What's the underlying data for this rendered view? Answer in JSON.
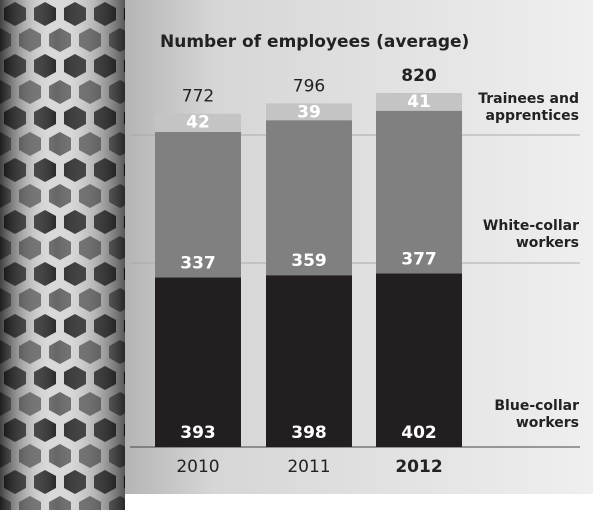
{
  "chart_data": {
    "type": "stacked-bar",
    "title": "Number of employees (average)",
    "categories": [
      "2010",
      "2011",
      "2012"
    ],
    "series": [
      {
        "name": "Blue-collar workers",
        "color": "#231f20",
        "values": [
          393,
          398,
          402
        ]
      },
      {
        "name": "White-collar workers",
        "color": "#808080",
        "values": [
          337,
          359,
          377
        ]
      },
      {
        "name": "Trainees and apprentices",
        "color": "#c4c4c4",
        "values": [
          42,
          39,
          41
        ]
      }
    ],
    "totals": [
      772,
      796,
      820
    ],
    "ylim": [
      0,
      820
    ]
  }
}
